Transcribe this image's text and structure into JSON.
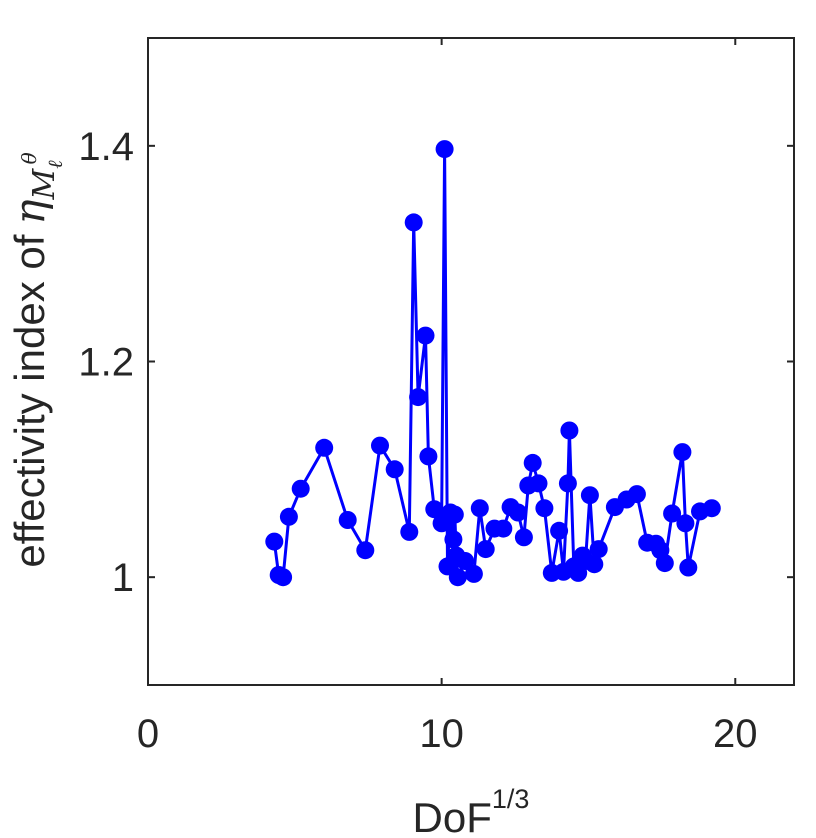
{
  "chart_data": {
    "type": "line",
    "xlabel_base": "DoF",
    "xlabel_exponent": "1/3",
    "ylabel_prefix": "effectivity index of",
    "ylabel_symbol": "η",
    "ylabel_subscript": "M",
    "ylabel_sub_sub": "ℓ",
    "ylabel_sup_sup": "θ",
    "xlim": [
      0,
      22
    ],
    "ylim": [
      0.9,
      1.5
    ],
    "xticks": [
      0,
      10,
      20
    ],
    "xtick_labels": [
      "0",
      "10",
      "20"
    ],
    "yticks": [
      1.0,
      1.2,
      1.4
    ],
    "ytick_labels": [
      "1",
      "1.2",
      "1.4"
    ],
    "grid": false,
    "series_color": "#0000ff",
    "series": [
      {
        "x": [
          4.3,
          4.45,
          4.6,
          4.8,
          5.2,
          6.0,
          6.8,
          7.4,
          7.9,
          8.4,
          8.9,
          9.05,
          9.2,
          9.45,
          9.55,
          9.75,
          10.0,
          10.1,
          10.2,
          10.3,
          10.4,
          10.45,
          10.5,
          10.55,
          10.8,
          11.1,
          11.3,
          11.5,
          11.8,
          12.1,
          12.35,
          12.6,
          12.8,
          12.95,
          13.1,
          13.3,
          13.5,
          13.75,
          14.0,
          14.15,
          14.3,
          14.35,
          14.5,
          14.65,
          14.8,
          14.9,
          15.05,
          15.2,
          15.35,
          15.9,
          16.3,
          16.65,
          17.0,
          17.3,
          17.45,
          17.6,
          17.85,
          18.2,
          18.3,
          18.4,
          18.8,
          19.2
        ],
        "y": [
          1.033,
          1.002,
          1.0,
          1.056,
          1.082,
          1.12,
          1.053,
          1.025,
          1.122,
          1.1,
          1.042,
          1.329,
          1.167,
          1.224,
          1.112,
          1.063,
          1.05,
          1.397,
          1.01,
          1.06,
          1.035,
          1.058,
          1.02,
          1.0,
          1.015,
          1.003,
          1.064,
          1.026,
          1.045,
          1.045,
          1.065,
          1.06,
          1.037,
          1.085,
          1.106,
          1.087,
          1.064,
          1.004,
          1.043,
          1.005,
          1.087,
          1.136,
          1.01,
          1.004,
          1.02,
          1.015,
          1.076,
          1.012,
          1.026,
          1.065,
          1.072,
          1.077,
          1.032,
          1.031,
          1.025,
          1.013,
          1.059,
          1.116,
          1.05,
          1.009,
          1.061,
          1.064
        ]
      }
    ]
  }
}
